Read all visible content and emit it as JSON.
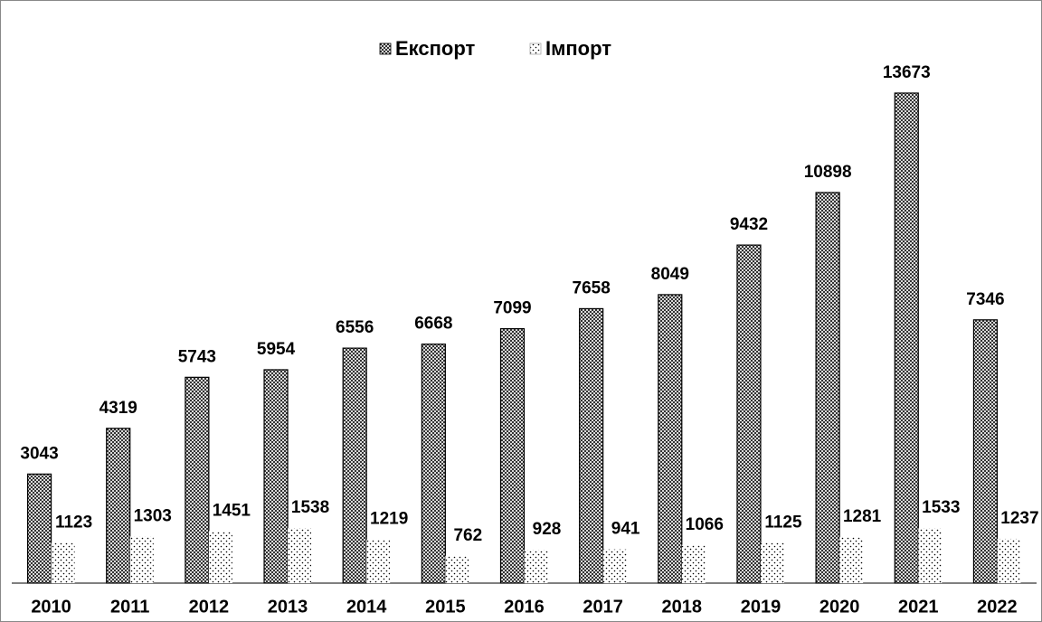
{
  "chart_data": {
    "type": "bar",
    "categories": [
      "2010",
      "2011",
      "2012",
      "2013",
      "2014",
      "2015",
      "2016",
      "2017",
      "2018",
      "2019",
      "2020",
      "2021",
      "2022"
    ],
    "series": [
      {
        "name": "Експорт",
        "color": "#7f7f7f",
        "values": [
          3043,
          4319,
          5743,
          5954,
          6556,
          6668,
          7099,
          7658,
          8049,
          9432,
          10898,
          13673,
          7346
        ]
      },
      {
        "name": "Імпорт",
        "color": "#ffffff",
        "values": [
          1123,
          1303,
          1451,
          1538,
          1219,
          762,
          928,
          941,
          1066,
          1125,
          1281,
          1533,
          1237
        ]
      }
    ],
    "ylim": [
      0,
      14000
    ],
    "legend": "top"
  }
}
